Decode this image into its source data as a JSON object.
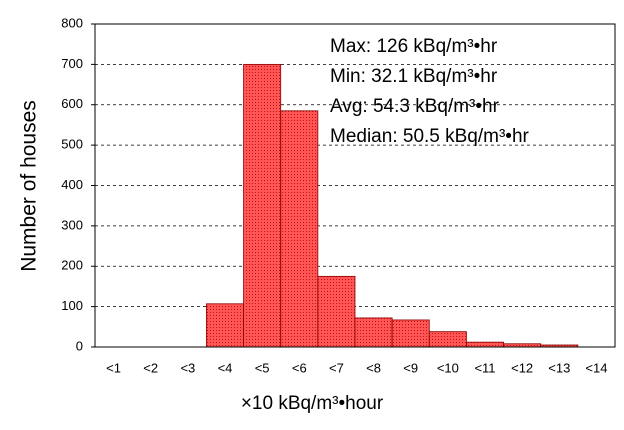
{
  "chart_data": {
    "type": "bar",
    "x_label": "×10 kBq/m³•hour",
    "y_label": "Number of houses",
    "categories": [
      "<1",
      "<2",
      "<3",
      "<4",
      "<5",
      "<6",
      "<7",
      "<8",
      "<9",
      "<10",
      "<11",
      "<12",
      "<13",
      "<14"
    ],
    "values": [
      0,
      0,
      0,
      107,
      700,
      585,
      175,
      72,
      67,
      38,
      12,
      8,
      5,
      0
    ],
    "color": "#e8262b",
    "ylim": [
      0,
      800
    ],
    "yticks": [
      0,
      100,
      200,
      300,
      400,
      500,
      600,
      700,
      800
    ],
    "grid": true,
    "annotations": [
      "Max: 126 kBq/m³•hr",
      "Min: 32.1 kBq/m³•hr",
      "Avg: 54.3 kBq/m³•hr",
      "Median: 50.5 kBq/m³•hr"
    ]
  }
}
